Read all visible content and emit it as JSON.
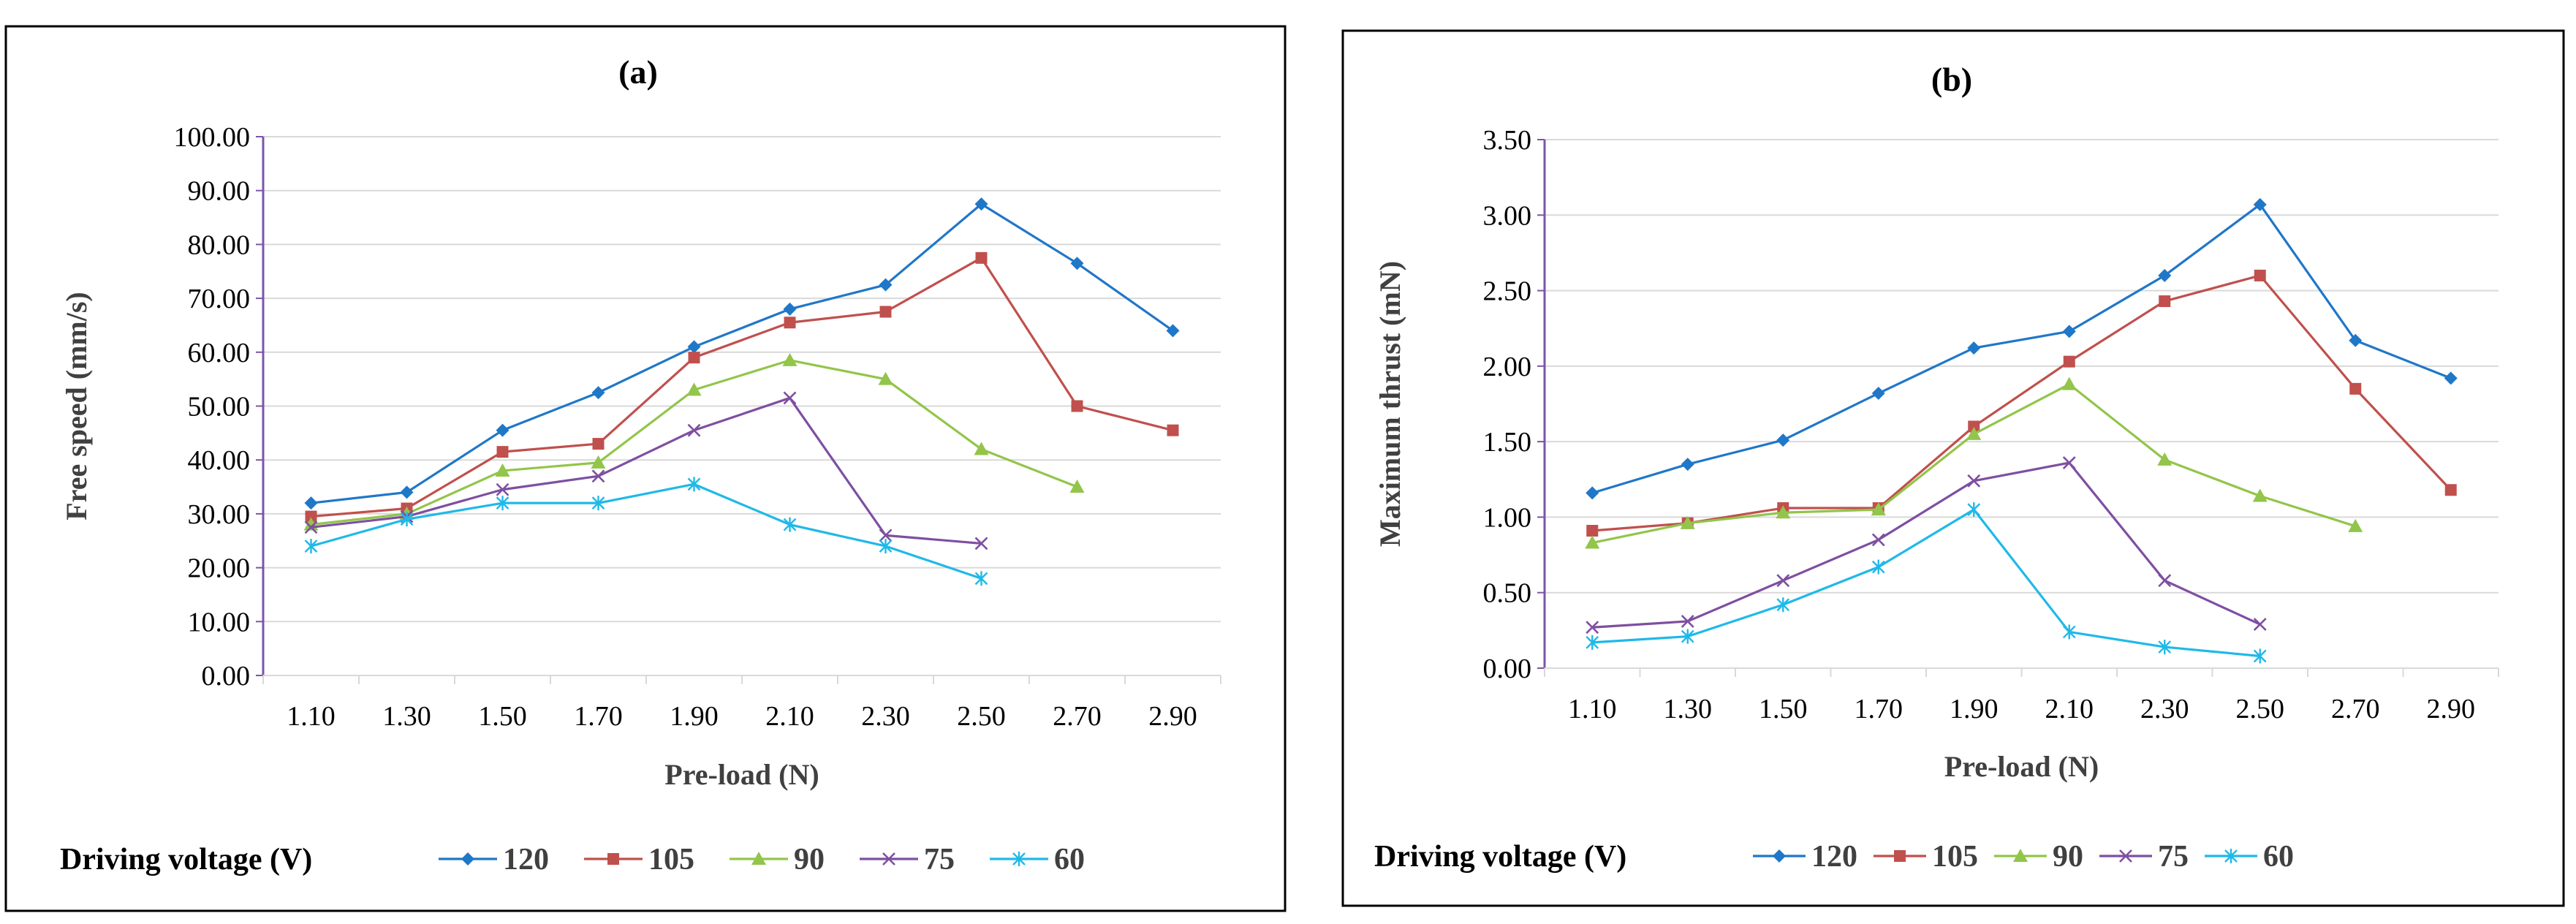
{
  "colors": {
    "s120": "#1F77C8",
    "s105": "#C0504D",
    "s90": "#92C54A",
    "s75": "#7E4FA1",
    "s60": "#1FB9E8",
    "axis": "#7B55A8",
    "grid": "#D9D9D9",
    "border": "#000000"
  },
  "chart_data": [
    {
      "type": "line",
      "title": "(a)",
      "xlabel": "Pre-load (N)",
      "ylabel": "Free speed (mm/s)",
      "ylim": [
        0,
        100
      ],
      "y_ticks": [
        "0.00",
        "10.00",
        "20.00",
        "30.00",
        "40.00",
        "50.00",
        "60.00",
        "70.00",
        "80.00",
        "90.00",
        "100.00"
      ],
      "categories": [
        "1.10",
        "1.30",
        "1.50",
        "1.70",
        "1.90",
        "2.10",
        "2.30",
        "2.50",
        "2.70",
        "2.90"
      ],
      "legend_title": "Driving voltage (V)",
      "legend_position": "bottom",
      "series": [
        {
          "name": "120",
          "marker": "diamond",
          "values": [
            32.0,
            34.0,
            45.5,
            52.5,
            61.0,
            68.0,
            72.5,
            87.5,
            76.5,
            64.0
          ]
        },
        {
          "name": "105",
          "marker": "square",
          "values": [
            29.5,
            31.0,
            41.5,
            43.0,
            59.0,
            65.5,
            67.5,
            77.5,
            50.0,
            45.5
          ]
        },
        {
          "name": "90",
          "marker": "triangle",
          "values": [
            28.0,
            30.0,
            38.0,
            39.5,
            53.0,
            58.5,
            55.0,
            42.0,
            35.0,
            null
          ]
        },
        {
          "name": "75",
          "marker": "x",
          "values": [
            27.5,
            29.5,
            34.5,
            37.0,
            45.5,
            51.5,
            26.0,
            24.5,
            null,
            null
          ]
        },
        {
          "name": "60",
          "marker": "star",
          "values": [
            24.0,
            29.0,
            32.0,
            32.0,
            35.5,
            28.0,
            24.0,
            18.0,
            null,
            null
          ]
        }
      ]
    },
    {
      "type": "line",
      "title": "(b)",
      "xlabel": "Pre-load (N)",
      "ylabel": "Maximum thrust (mN)",
      "ylim": [
        0,
        3.5
      ],
      "y_ticks": [
        "0.00",
        "0.50",
        "1.00",
        "1.50",
        "2.00",
        "2.50",
        "3.00",
        "3.50"
      ],
      "categories": [
        "1.10",
        "1.30",
        "1.50",
        "1.70",
        "1.90",
        "2.10",
        "2.30",
        "2.50",
        "2.70",
        "2.90"
      ],
      "legend_title": "Driving voltage (V)",
      "legend_position": "bottom",
      "series": [
        {
          "name": "120",
          "marker": "diamond",
          "values": [
            1.16,
            1.35,
            1.51,
            1.82,
            2.12,
            2.23,
            2.6,
            3.07,
            2.17,
            1.92
          ]
        },
        {
          "name": "105",
          "marker": "square",
          "values": [
            0.91,
            0.96,
            1.06,
            1.06,
            1.6,
            2.03,
            2.43,
            2.6,
            1.85,
            1.18
          ]
        },
        {
          "name": "90",
          "marker": "triangle",
          "values": [
            0.83,
            0.96,
            1.03,
            1.05,
            1.55,
            1.88,
            1.38,
            1.14,
            0.94,
            null
          ]
        },
        {
          "name": "75",
          "marker": "x",
          "values": [
            0.27,
            0.31,
            0.58,
            0.85,
            1.24,
            1.36,
            0.58,
            0.29,
            null,
            null
          ]
        },
        {
          "name": "60",
          "marker": "star",
          "values": [
            0.17,
            0.21,
            0.42,
            0.67,
            1.05,
            0.24,
            0.14,
            0.08,
            null,
            null
          ]
        }
      ]
    }
  ]
}
